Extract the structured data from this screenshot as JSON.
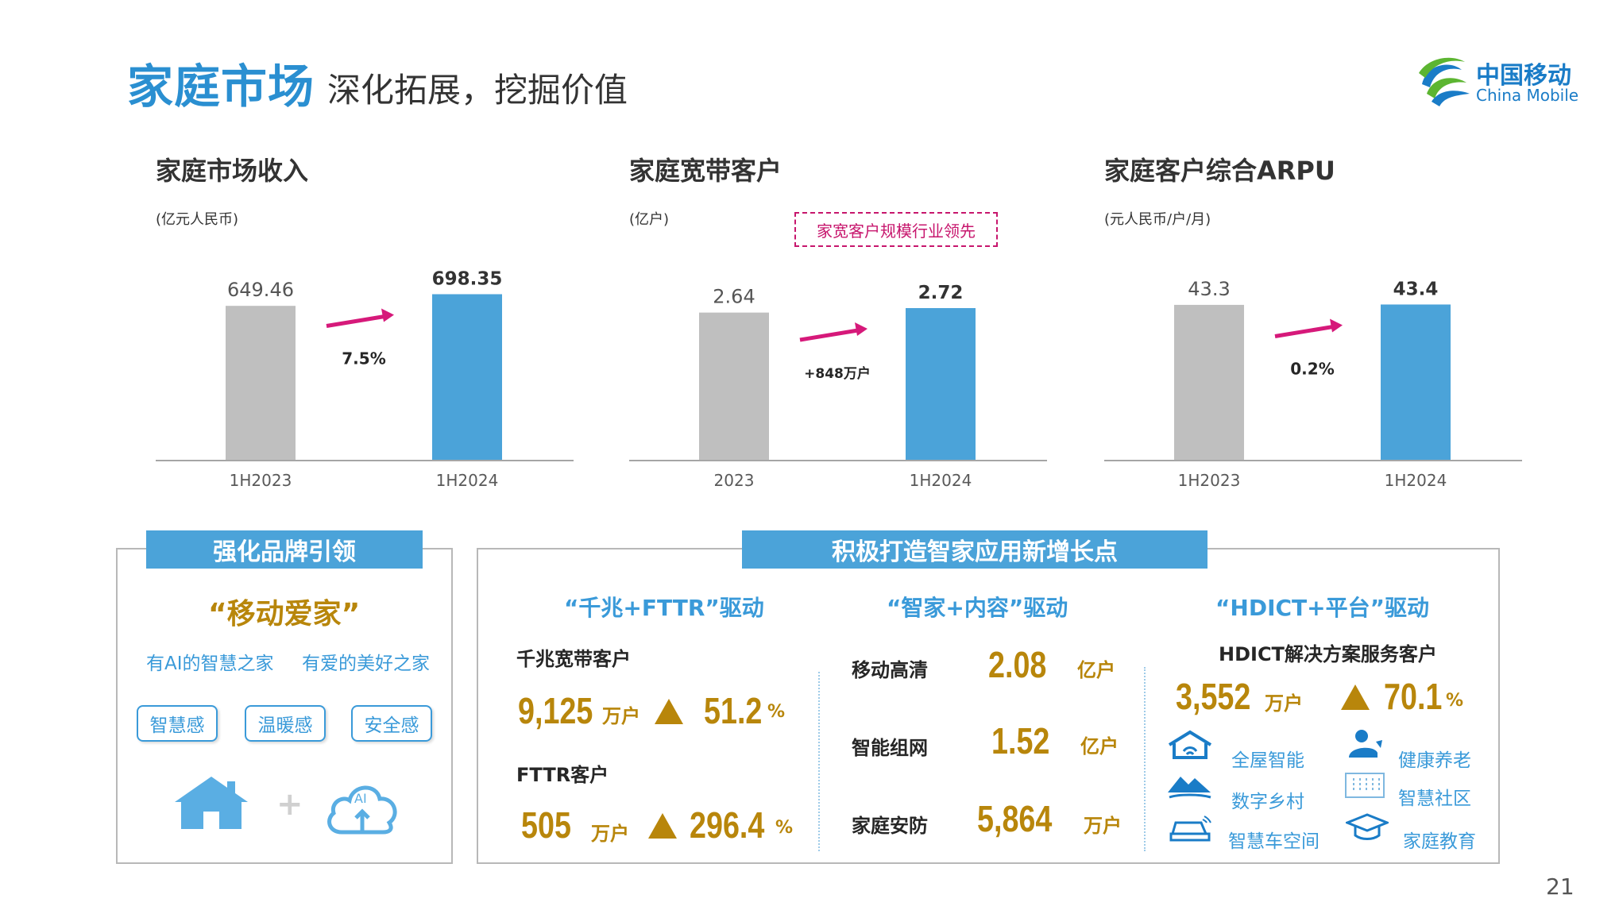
{
  "header": {
    "title": "家庭市场",
    "subtitle": "深化拓展，挖掘价值",
    "logo_cn": "中国移动",
    "logo_en": "China Mobile"
  },
  "charts": {
    "revenue": {
      "title": "家庭市场收入",
      "unit": "(亿元人民币)"
    },
    "broadband": {
      "title": "家庭宽带客户",
      "unit": "(亿户)",
      "callout": "家宽客户规模行业领先"
    },
    "arpu": {
      "title": "家庭客户综合ARPU",
      "unit": "(元人民币/户/月)"
    }
  },
  "chart_data": [
    {
      "type": "bar",
      "title": "家庭市场收入",
      "ylabel": "(亿元人民币)",
      "categories": [
        "1H2023",
        "1H2024"
      ],
      "values": [
        649.46,
        698.35
      ],
      "labels": [
        "649.46",
        "698.35"
      ],
      "change_label": "7.5%",
      "colors": [
        "#bfbfbf",
        "#4ba3d9"
      ],
      "ylim": [
        0,
        800
      ]
    },
    {
      "type": "bar",
      "title": "家庭宽带客户",
      "ylabel": "(亿户)",
      "categories": [
        "2023",
        "1H2024"
      ],
      "values": [
        2.64,
        2.72
      ],
      "labels": [
        "2.64",
        "2.72"
      ],
      "change_label": "+848万户",
      "colors": [
        "#bfbfbf",
        "#4ba3d9"
      ],
      "ylim": [
        0,
        3.4
      ]
    },
    {
      "type": "bar",
      "title": "家庭客户综合ARPU",
      "ylabel": "(元人民币/户/月)",
      "categories": [
        "1H2023",
        "1H2024"
      ],
      "values": [
        43.3,
        43.4
      ],
      "labels": [
        "43.3",
        "43.4"
      ],
      "change_label": "0.2%",
      "colors": [
        "#bfbfbf",
        "#4ba3d9"
      ],
      "ylim": [
        0,
        53
      ]
    }
  ],
  "brand_panel": {
    "header": "强化品牌引领",
    "quote": "“移动爱家”",
    "line1": "有AI的智慧之家",
    "line2": "有爱的美好之家",
    "pills": [
      "智慧感",
      "温暖感",
      "安全感"
    ],
    "plus": "+",
    "cloud_text": "AI"
  },
  "growth_panel": {
    "header": "积极打造智家应用新增长点",
    "col1": {
      "heading": "“千兆+FTTR”驱动",
      "m1_label": "千兆宽带客户",
      "m1_value": "9,125",
      "m1_unit": "万户",
      "m1_growth": "51.2",
      "m1_pct": "%",
      "m2_label": "FTTR客户",
      "m2_value": "505",
      "m2_unit": "万户",
      "m2_growth": "296.4",
      "m2_pct": "%"
    },
    "col2": {
      "heading": "“智家+内容”驱动",
      "rows": [
        {
          "label": "移动高清",
          "value": "2.08",
          "unit": "亿户"
        },
        {
          "label": "智能组网",
          "value": "1.52",
          "unit": "亿户"
        },
        {
          "label": "家庭安防",
          "value": "5,864",
          "unit": "万户"
        }
      ]
    },
    "col3": {
      "heading": "“HDICT+平台”驱动",
      "metric_label": "HDICT解决方案服务客户",
      "value": "3,552",
      "unit": "万户",
      "growth": "70.1",
      "pct": "%",
      "apps": [
        "全屋智能",
        "健康养老",
        "数字乡村",
        "智慧社区",
        "智慧车空间",
        "家庭教育"
      ]
    }
  },
  "page_number": "21"
}
